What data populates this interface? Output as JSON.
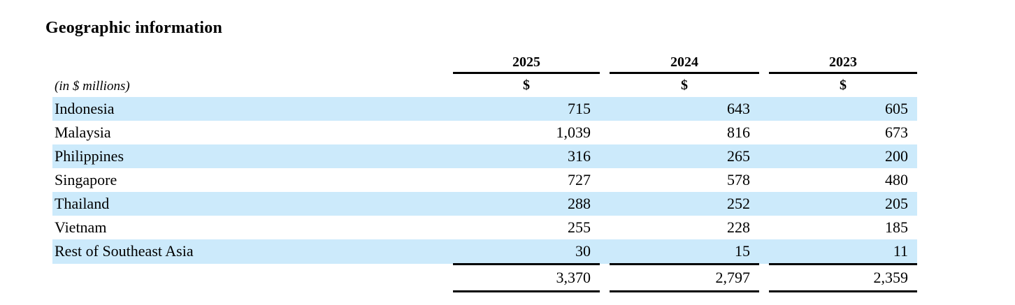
{
  "section": {
    "title": "Geographic information"
  },
  "table": {
    "unit_label": "(in $ millions)",
    "currency_symbol": "$",
    "years": [
      "2025",
      "2024",
      "2023"
    ],
    "highlight_color": "#cceafb",
    "rule_color": "#000000",
    "rows": [
      {
        "label": "Indonesia",
        "values": [
          "715",
          "643",
          "605"
        ],
        "highlighted": true
      },
      {
        "label": "Malaysia",
        "values": [
          "1,039",
          "816",
          "673"
        ],
        "highlighted": false
      },
      {
        "label": "Philippines",
        "values": [
          "316",
          "265",
          "200"
        ],
        "highlighted": true
      },
      {
        "label": "Singapore",
        "values": [
          "727",
          "578",
          "480"
        ],
        "highlighted": false
      },
      {
        "label": "Thailand",
        "values": [
          "288",
          "252",
          "205"
        ],
        "highlighted": true
      },
      {
        "label": "Vietnam",
        "values": [
          "255",
          "228",
          "185"
        ],
        "highlighted": false
      },
      {
        "label": "Rest of Southeast Asia",
        "values": [
          "30",
          "15",
          "11"
        ],
        "highlighted": true
      }
    ],
    "total": {
      "values": [
        "3,370",
        "2,797",
        "2,359"
      ]
    }
  },
  "chart_data": {
    "type": "table",
    "title": "Geographic information",
    "unit": "in $ millions",
    "categories": [
      "Indonesia",
      "Malaysia",
      "Philippines",
      "Singapore",
      "Thailand",
      "Vietnam",
      "Rest of Southeast Asia"
    ],
    "series": [
      {
        "name": "2025",
        "values": [
          715,
          1039,
          316,
          727,
          288,
          255,
          30
        ],
        "total": 3370
      },
      {
        "name": "2024",
        "values": [
          643,
          816,
          265,
          578,
          252,
          228,
          15
        ],
        "total": 2797
      },
      {
        "name": "2023",
        "values": [
          605,
          673,
          200,
          480,
          205,
          185,
          11
        ],
        "total": 2359
      }
    ]
  }
}
